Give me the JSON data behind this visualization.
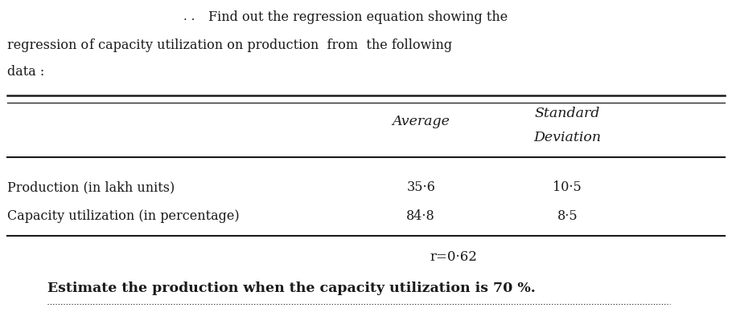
{
  "title_dots": ". .",
  "title_line1": "Find out the regression equation showing the",
  "title_line2a": "regression o",
  "title_line2b": "f capacity utilization on production  from  the following",
  "title_line3": "data :",
  "col_header1": "Average",
  "col_header2": "Standard",
  "col_header2b": "Deviation",
  "row1_label": "Production (in lakh units)",
  "row2_label": "Capacity utilization (in percentage)",
  "row1_avg": "35·6",
  "row1_sd": "10·5",
  "row2_avg": "84·8",
  "row2_sd": "8·5",
  "r_value": "r=0·62",
  "footer": "Estimate the production when the capacity utilization is 70 %.",
  "bg_color": "#ffffff",
  "text_color": "#1a1a1a",
  "figwidth": 9.1,
  "figheight": 3.89,
  "dpi": 100
}
